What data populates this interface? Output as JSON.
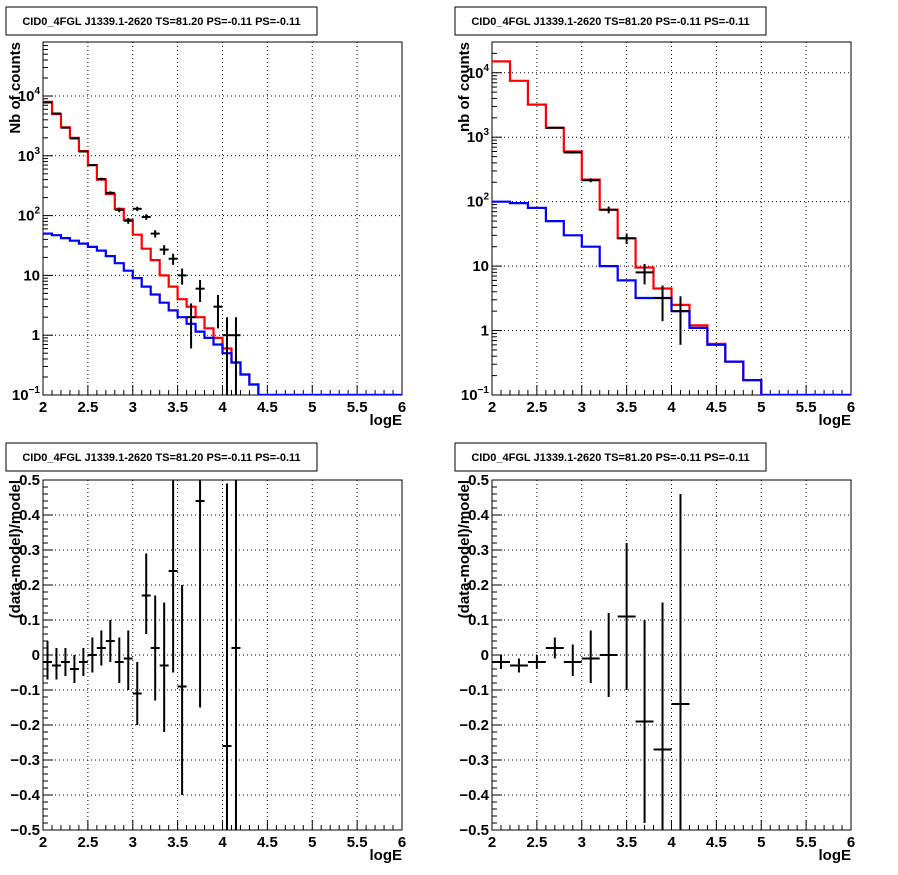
{
  "chart_data": [
    {
      "type": "line",
      "title": "CID0_4FGL J1339.1-2620 TS=81.20 PS=-0.11 PS=-0.11",
      "xlabel": "logE",
      "ylabel": "Nb of counts",
      "xlim": [
        2,
        6
      ],
      "ylim": [
        0.1,
        80000
      ],
      "yscale": "log",
      "grid": true,
      "xticks": [
        "2",
        "2.5",
        "3",
        "3.5",
        "4",
        "4.5",
        "5",
        "5.5",
        "6"
      ],
      "yticks": [
        {
          "value": 0.1,
          "base": "10",
          "exp": "−1"
        },
        {
          "value": 1,
          "label": "1"
        },
        {
          "value": 10,
          "label": "10"
        },
        {
          "value": 100,
          "base": "10",
          "exp": "2"
        },
        {
          "value": 1000,
          "base": "10",
          "exp": "3"
        },
        {
          "value": 10000,
          "base": "10",
          "exp": "4"
        }
      ],
      "bins": {
        "start": 2.0,
        "width": 0.1
      },
      "series": [
        {
          "color": "#ff0000",
          "values": [
            8000,
            5000,
            3000,
            2000,
            1200,
            700,
            400,
            230,
            130,
            85,
            48,
            28,
            18,
            10,
            6.5,
            4.0,
            3.0,
            2.0,
            1.3,
            0.9,
            0.6,
            0.35,
            0.22,
            0.15,
            0.1,
            0.1,
            0.1,
            0.1,
            0.1,
            0.1,
            0.1,
            0.1,
            0.1,
            0.1,
            0.1,
            0.1,
            0.1,
            0.1,
            0.1,
            0.1
          ]
        },
        {
          "color": "#0000ff",
          "values": [
            50,
            47,
            42,
            38,
            34,
            30,
            26,
            21,
            16,
            12,
            9.0,
            6.5,
            4.8,
            3.5,
            2.6,
            2.0,
            1.55,
            1.15,
            0.9,
            0.7,
            0.5,
            0.35,
            0.22,
            0.15,
            0.1,
            0.1,
            0.1,
            0.1,
            0.1,
            0.1,
            0.1,
            0.1,
            0.1,
            0.1,
            0.1,
            0.1,
            0.1,
            0.1,
            0.1,
            0.1
          ]
        }
      ],
      "points": [
        {
          "x": 2.05,
          "y": 7800,
          "xerr": 0.05,
          "ylo": 7700,
          "yhi": 7900
        },
        {
          "x": 2.15,
          "y": 5100,
          "xerr": 0.05,
          "ylo": 5030,
          "yhi": 5170
        },
        {
          "x": 2.25,
          "y": 2950,
          "xerr": 0.05,
          "ylo": 2895,
          "yhi": 3005
        },
        {
          "x": 2.35,
          "y": 1950,
          "xerr": 0.05,
          "ylo": 1905,
          "yhi": 1995
        },
        {
          "x": 2.45,
          "y": 1180,
          "xerr": 0.05,
          "ylo": 1145,
          "yhi": 1215
        },
        {
          "x": 2.55,
          "y": 700,
          "xerr": 0.05,
          "ylo": 674,
          "yhi": 726
        },
        {
          "x": 2.65,
          "y": 410,
          "xerr": 0.05,
          "ylo": 390,
          "yhi": 430
        },
        {
          "x": 2.75,
          "y": 240,
          "xerr": 0.05,
          "ylo": 225,
          "yhi": 255
        },
        {
          "x": 2.85,
          "y": 125,
          "xerr": 0.05,
          "ylo": 114,
          "yhi": 136
        },
        {
          "x": 2.95,
          "y": 82,
          "xerr": 0.05,
          "ylo": 73,
          "yhi": 91
        },
        {
          "x": 3.05,
          "y": 130,
          "xerr": 0.05,
          "ylo": 119,
          "yhi": 141
        },
        {
          "x": 3.15,
          "y": 95,
          "xerr": 0.05,
          "ylo": 85,
          "yhi": 105
        },
        {
          "x": 3.25,
          "y": 50,
          "xerr": 0.05,
          "ylo": 43,
          "yhi": 57
        },
        {
          "x": 3.35,
          "y": 27,
          "xerr": 0.05,
          "ylo": 22,
          "yhi": 32
        },
        {
          "x": 3.45,
          "y": 19,
          "xerr": 0.05,
          "ylo": 15,
          "yhi": 23
        },
        {
          "x": 3.55,
          "y": 10,
          "xerr": 0.05,
          "ylo": 7,
          "yhi": 13
        },
        {
          "x": 3.65,
          "y": 2,
          "xerr": 0.05,
          "ylo": 0.6,
          "yhi": 3.4
        },
        {
          "x": 3.75,
          "y": 6,
          "xerr": 0.05,
          "ylo": 3.6,
          "yhi": 8.4
        },
        {
          "x": 3.95,
          "y": 3,
          "xerr": 0.05,
          "ylo": 1.3,
          "yhi": 4.7
        },
        {
          "x": 4.05,
          "y": 1,
          "xerr": 0.05,
          "ylo": 0.1,
          "yhi": 2
        },
        {
          "x": 4.15,
          "y": 1,
          "xerr": 0.05,
          "ylo": 0.1,
          "yhi": 2
        }
      ]
    },
    {
      "type": "line",
      "title": "CID0_4FGL J1339.1-2620 TS=81.20 PS=-0.11 PS=-0.11",
      "xlabel": "logE",
      "ylabel": "nb of counts",
      "xlim": [
        2,
        6
      ],
      "ylim": [
        0.1,
        30000
      ],
      "yscale": "log",
      "grid": true,
      "xticks": [
        "2",
        "2.5",
        "3",
        "3.5",
        "4",
        "4.5",
        "5",
        "5.5",
        "6"
      ],
      "yticks": [
        {
          "value": 0.1,
          "base": "10",
          "exp": "−1"
        },
        {
          "value": 1,
          "label": "1"
        },
        {
          "value": 10,
          "label": "10"
        },
        {
          "value": 100,
          "base": "10",
          "exp": "2"
        },
        {
          "value": 1000,
          "base": "10",
          "exp": "3"
        },
        {
          "value": 10000,
          "base": "10",
          "exp": "4"
        }
      ],
      "bins": {
        "start": 2.0,
        "width": 0.2
      },
      "series": [
        {
          "color": "#ff0000",
          "values": [
            15000,
            7500,
            3200,
            1400,
            600,
            220,
            75,
            27,
            9.5,
            4.5,
            2.5,
            1.2,
            0.62,
            0.33,
            0.17,
            0.1,
            0.1,
            0.1,
            0.1,
            0.1
          ]
        },
        {
          "color": "#0000ff",
          "values": [
            100,
            95,
            80,
            50,
            30,
            20,
            10,
            6,
            3.2,
            3.2,
            2.0,
            1.1,
            0.6,
            0.33,
            0.17,
            0.1,
            0.1,
            0.1,
            0.1,
            0.1
          ]
        }
      ],
      "points": [
        {
          "x": 2.7,
          "y": 1400,
          "xerr": 0.1,
          "ylo": 1360,
          "yhi": 1440
        },
        {
          "x": 2.9,
          "y": 580,
          "xerr": 0.1,
          "ylo": 555,
          "yhi": 605
        },
        {
          "x": 3.1,
          "y": 215,
          "xerr": 0.1,
          "ylo": 200,
          "yhi": 230
        },
        {
          "x": 3.3,
          "y": 75,
          "xerr": 0.1,
          "ylo": 66,
          "yhi": 84
        },
        {
          "x": 3.5,
          "y": 27,
          "xerr": 0.1,
          "ylo": 22,
          "yhi": 32
        },
        {
          "x": 3.7,
          "y": 8,
          "xerr": 0.1,
          "ylo": 5.2,
          "yhi": 10.8
        },
        {
          "x": 3.9,
          "y": 3.2,
          "xerr": 0.1,
          "ylo": 1.4,
          "yhi": 5.0
        },
        {
          "x": 4.1,
          "y": 2.0,
          "xerr": 0.1,
          "ylo": 0.6,
          "yhi": 3.4
        }
      ]
    },
    {
      "type": "scatter",
      "title": "CID0_4FGL J1339.1-2620 TS=81.20 PS=-0.11 PS=-0.11",
      "xlabel": "logE",
      "ylabel": "(data-model)/model",
      "xlim": [
        2,
        6
      ],
      "ylim": [
        -0.5,
        0.5
      ],
      "grid": true,
      "xticks": [
        "2",
        "2.5",
        "3",
        "3.5",
        "4",
        "4.5",
        "5",
        "5.5",
        "6"
      ],
      "yticks": [
        "−0.5",
        "−0.4",
        "−0.3",
        "−0.2",
        "−0.1",
        "0",
        "0.1",
        "0.2",
        "0.3",
        "0.4",
        "0.5"
      ],
      "points": [
        {
          "x": 2.05,
          "y": -0.02,
          "xerr": 0.05,
          "ylo": -0.07,
          "yhi": 0.04
        },
        {
          "x": 2.15,
          "y": -0.03,
          "xerr": 0.05,
          "ylo": -0.07,
          "yhi": 0.02
        },
        {
          "x": 2.25,
          "y": -0.02,
          "xerr": 0.05,
          "ylo": -0.06,
          "yhi": 0.02
        },
        {
          "x": 2.35,
          "y": -0.04,
          "xerr": 0.05,
          "ylo": -0.08,
          "yhi": 0.0
        },
        {
          "x": 2.45,
          "y": -0.02,
          "xerr": 0.05,
          "ylo": -0.06,
          "yhi": 0.02
        },
        {
          "x": 2.55,
          "y": 0.0,
          "xerr": 0.05,
          "ylo": -0.05,
          "yhi": 0.05
        },
        {
          "x": 2.65,
          "y": 0.02,
          "xerr": 0.05,
          "ylo": -0.03,
          "yhi": 0.07
        },
        {
          "x": 2.75,
          "y": 0.04,
          "xerr": 0.05,
          "ylo": -0.02,
          "yhi": 0.1
        },
        {
          "x": 2.85,
          "y": -0.02,
          "xerr": 0.05,
          "ylo": -0.08,
          "yhi": 0.05
        },
        {
          "x": 2.95,
          "y": -0.01,
          "xerr": 0.05,
          "ylo": -0.1,
          "yhi": 0.07
        },
        {
          "x": 3.05,
          "y": -0.11,
          "xerr": 0.05,
          "ylo": -0.2,
          "yhi": -0.02
        },
        {
          "x": 3.15,
          "y": 0.17,
          "xerr": 0.05,
          "ylo": 0.06,
          "yhi": 0.29
        },
        {
          "x": 3.25,
          "y": 0.02,
          "xerr": 0.05,
          "ylo": -0.13,
          "yhi": 0.17
        },
        {
          "x": 3.35,
          "y": -0.03,
          "xerr": 0.05,
          "ylo": -0.22,
          "yhi": 0.15
        },
        {
          "x": 3.45,
          "y": 0.24,
          "xerr": 0.05,
          "ylo": -0.05,
          "yhi": 0.5
        },
        {
          "x": 3.55,
          "y": -0.09,
          "xerr": 0.05,
          "ylo": -0.4,
          "yhi": 0.2
        },
        {
          "x": 3.75,
          "y": 0.44,
          "xerr": 0.05,
          "ylo": -0.15,
          "yhi": 0.5
        },
        {
          "x": 4.05,
          "y": -0.26,
          "xerr": 0.05,
          "ylo": -0.5,
          "yhi": 0.49
        },
        {
          "x": 4.15,
          "y": 0.02,
          "xerr": 0.05,
          "ylo": -0.5,
          "yhi": 0.5
        }
      ]
    },
    {
      "type": "scatter",
      "title": "CID0_4FGL J1339.1-2620 TS=81.20 PS=-0.11 PS=-0.11",
      "xlabel": "logE",
      "ylabel": "(data-model)/model",
      "xlim": [
        2,
        6
      ],
      "ylim": [
        -0.5,
        0.5
      ],
      "grid": true,
      "xticks": [
        "2",
        "2.5",
        "3",
        "3.5",
        "4",
        "4.5",
        "5",
        "5.5",
        "6"
      ],
      "yticks": [
        "−0.5",
        "−0.4",
        "−0.3",
        "−0.2",
        "−0.1",
        "0",
        "0.1",
        "0.2",
        "0.3",
        "0.4",
        "0.5"
      ],
      "points": [
        {
          "x": 2.1,
          "y": -0.02,
          "xerr": 0.1,
          "ylo": -0.04,
          "yhi": 0.0
        },
        {
          "x": 2.3,
          "y": -0.03,
          "xerr": 0.1,
          "ylo": -0.05,
          "yhi": -0.01
        },
        {
          "x": 2.5,
          "y": -0.02,
          "xerr": 0.1,
          "ylo": -0.04,
          "yhi": 0.0
        },
        {
          "x": 2.7,
          "y": 0.02,
          "xerr": 0.1,
          "ylo": -0.01,
          "yhi": 0.05
        },
        {
          "x": 2.9,
          "y": -0.02,
          "xerr": 0.1,
          "ylo": -0.06,
          "yhi": 0.03
        },
        {
          "x": 3.1,
          "y": -0.01,
          "xerr": 0.1,
          "ylo": -0.08,
          "yhi": 0.07
        },
        {
          "x": 3.3,
          "y": 0.0,
          "xerr": 0.1,
          "ylo": -0.12,
          "yhi": 0.12
        },
        {
          "x": 3.5,
          "y": 0.11,
          "xerr": 0.1,
          "ylo": -0.1,
          "yhi": 0.32
        },
        {
          "x": 3.7,
          "y": -0.19,
          "xerr": 0.1,
          "ylo": -0.48,
          "yhi": 0.1
        },
        {
          "x": 3.9,
          "y": -0.27,
          "xerr": 0.1,
          "ylo": -0.5,
          "yhi": 0.15
        },
        {
          "x": 4.1,
          "y": -0.14,
          "xerr": 0.1,
          "ylo": -0.5,
          "yhi": 0.46
        }
      ]
    }
  ]
}
